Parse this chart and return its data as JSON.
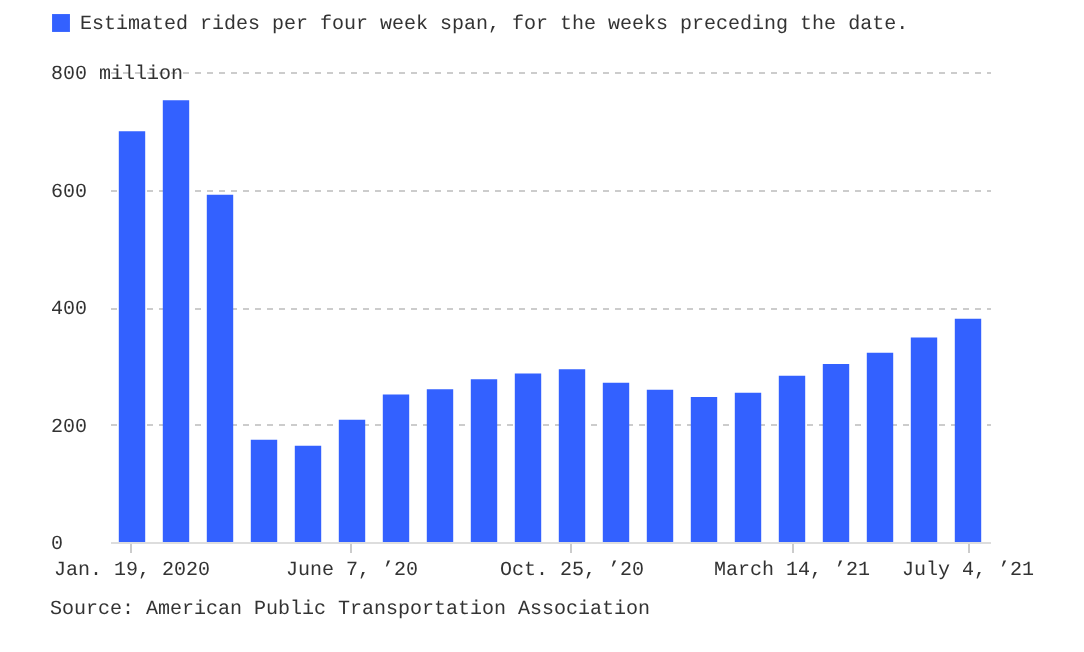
{
  "chart_data": {
    "type": "bar",
    "categories": [
      "Jan. 19, 2020",
      null,
      null,
      null,
      null,
      "June 7, ’20",
      null,
      null,
      null,
      null,
      "Oct. 25, ’20",
      null,
      null,
      null,
      null,
      "March 14, ’21",
      null,
      null,
      null,
      "July 4, ’21"
    ],
    "series": [
      {
        "name": "Estimated rides per four week span, for the weeks preceding the date.",
        "color": "#3361ff",
        "values": [
          699,
          752,
          591,
          174,
          164,
          208,
          251,
          260,
          277,
          287,
          294,
          271,
          259,
          247,
          254,
          283,
          303,
          322,
          348,
          380
        ]
      }
    ],
    "ylim": [
      0,
      800
    ],
    "yticks": [
      0,
      200,
      400,
      600,
      {
        "value": 800,
        "label": "800 million"
      }
    ],
    "grid": "y",
    "legend": "top left",
    "annotations": [
      "Source: American Public Transportation Association"
    ]
  }
}
